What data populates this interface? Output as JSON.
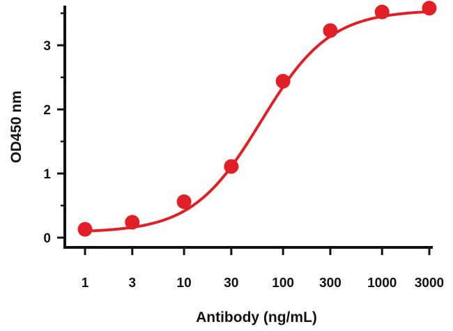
{
  "chart_data": {
    "type": "line",
    "xscale": "log",
    "x": [
      1,
      3,
      10,
      30,
      100,
      300,
      1000,
      3000
    ],
    "x_tick_labels": [
      "1",
      "3",
      "10",
      "30",
      "100",
      "300",
      "1000",
      "3000"
    ],
    "y_ticks": [
      0,
      1,
      2,
      3
    ],
    "y_tick_labels": [
      "0",
      "1",
      "2",
      "3"
    ],
    "ylim": [
      -0.1,
      3.6
    ],
    "series": [
      {
        "values": [
          0.13,
          0.24,
          0.56,
          1.11,
          2.44,
          3.23,
          3.52,
          3.58
        ],
        "color": "#e01f26",
        "markers": "filled-circle",
        "fit": "sigmoid"
      }
    ],
    "xlabel": "Antibody (ng/mL)",
    "ylabel": "OD450 nm",
    "grid": false,
    "legend": "none"
  }
}
